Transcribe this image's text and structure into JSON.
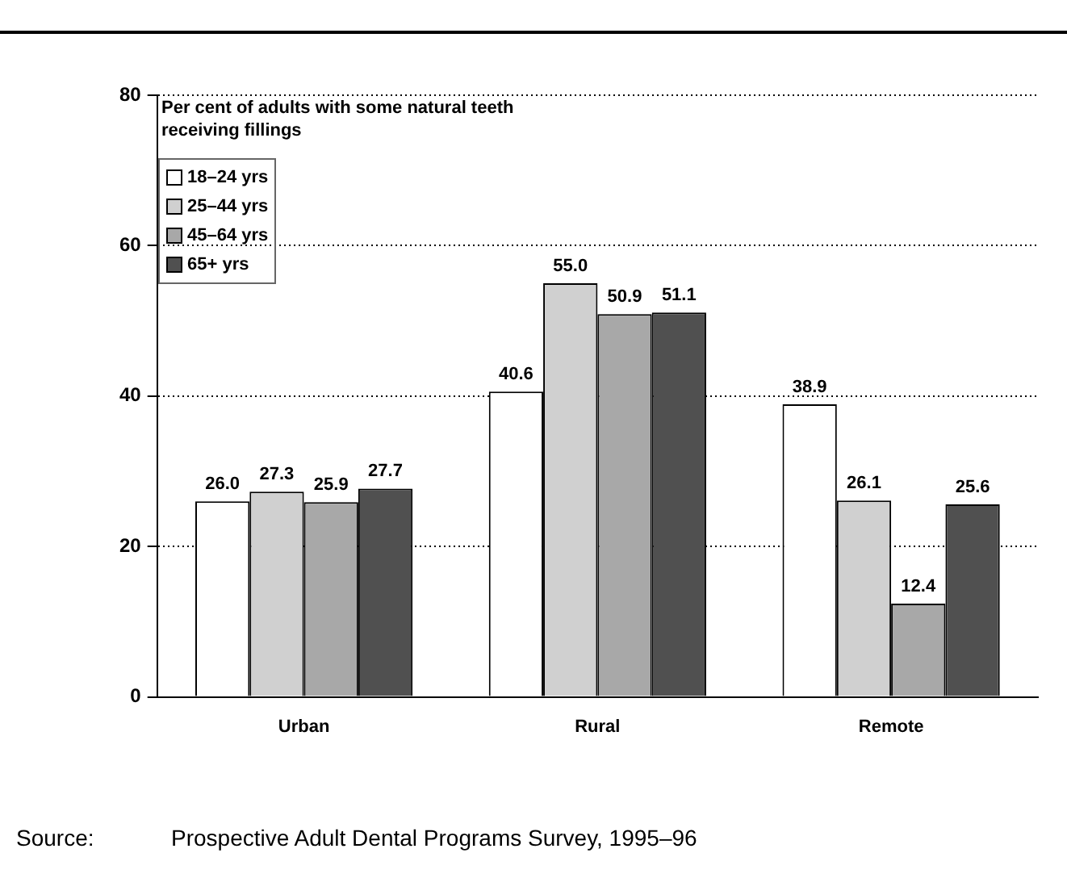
{
  "chart_data": {
    "type": "bar",
    "ylabel": "Per cent of adults with some natural teeth\nreceiving fillings",
    "categories": [
      "Urban",
      "Rural",
      "Remote"
    ],
    "series": [
      {
        "name": "18–24 yrs",
        "color": "#ffffff",
        "values": [
          26.0,
          40.6,
          38.9
        ],
        "value_labels": [
          "26.0",
          "40.6",
          "38.9"
        ]
      },
      {
        "name": "25–44 yrs",
        "color": "#d0d0d0",
        "values": [
          27.3,
          55.0,
          26.1
        ],
        "value_labels": [
          "27.3",
          "55.0",
          "26.1"
        ]
      },
      {
        "name": "45–64 yrs",
        "color": "#a8a8a8",
        "values": [
          25.9,
          50.9,
          12.4
        ],
        "value_labels": [
          "25.9",
          "50.9",
          "12.4"
        ]
      },
      {
        "name": "65+ yrs",
        "color": "#505050",
        "values": [
          27.7,
          51.1,
          25.6
        ],
        "value_labels": [
          "27.7",
          "51.1",
          "25.6"
        ]
      }
    ],
    "ylim": [
      0,
      80
    ],
    "yticks": [
      0,
      20,
      40,
      60,
      80
    ],
    "grid": "y",
    "legend": "top left",
    "annotations": [
      "Source:\tProspective Adult Dental Programs Survey, 1995–96"
    ]
  }
}
